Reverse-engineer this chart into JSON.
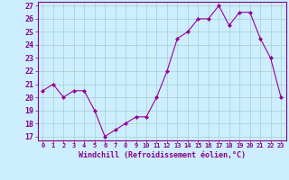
{
  "x": [
    0,
    1,
    2,
    3,
    4,
    5,
    6,
    7,
    8,
    9,
    10,
    11,
    12,
    13,
    14,
    15,
    16,
    17,
    18,
    19,
    20,
    21,
    22,
    23
  ],
  "y": [
    20.5,
    21.0,
    20.0,
    20.5,
    20.5,
    19.0,
    17.0,
    17.5,
    18.0,
    18.5,
    18.5,
    20.0,
    22.0,
    24.5,
    25.0,
    26.0,
    26.0,
    27.0,
    25.5,
    26.5,
    26.5,
    24.5,
    23.0,
    20.0
  ],
  "line_color": "#990099",
  "marker": "D",
  "marker_size": 2,
  "bg_color": "#cceeff",
  "grid_color": "#aacccc",
  "xlabel": "Windchill (Refroidissement éolien,°C)",
  "xlabel_color": "#880088",
  "tick_color": "#880088",
  "ylim_min": 17,
  "ylim_max": 27,
  "yticks": [
    17,
    18,
    19,
    20,
    21,
    22,
    23,
    24,
    25,
    26,
    27
  ],
  "xlim_min": -0.5,
  "xlim_max": 23.5,
  "xticks": [
    0,
    1,
    2,
    3,
    4,
    5,
    6,
    7,
    8,
    9,
    10,
    11,
    12,
    13,
    14,
    15,
    16,
    17,
    18,
    19,
    20,
    21,
    22,
    23
  ],
  "tick_fontsize": 5,
  "xlabel_fontsize": 6,
  "linewidth": 0.8
}
